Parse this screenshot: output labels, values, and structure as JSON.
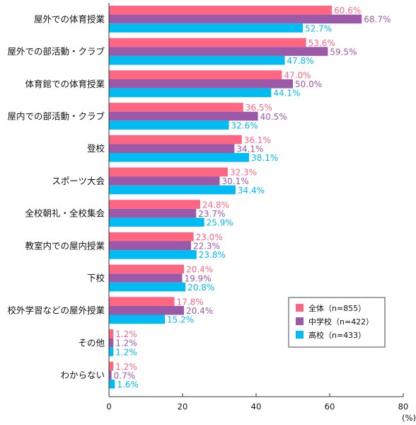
{
  "chart_data": {
    "type": "bar",
    "orientation": "horizontal",
    "categories": [
      "屋外での体育授業",
      "屋外での部活動・クラブ",
      "体育館での体育授業",
      "屋内での部活動・クラブ",
      "登校",
      "スポーツ大会",
      "全校朝礼・全校集会",
      "教室内での屋内授業",
      "下校",
      "校外学習などの屋外授業",
      "その他",
      "わからない"
    ],
    "series": [
      {
        "name": "全体（n=855）",
        "color": "#ff6682",
        "values": [
          60.6,
          53.6,
          47.0,
          36.5,
          36.1,
          32.3,
          24.8,
          23.0,
          20.4,
          17.8,
          1.2,
          1.2
        ],
        "labels": [
          "60.6%",
          "53.6%",
          "47.0%",
          "36.5%",
          "36.1%",
          "32.3%",
          "24.8%",
          "23.0%",
          "20.4%",
          "17.8%",
          "1.2%",
          "1.2%"
        ]
      },
      {
        "name": "中学校（n=422）",
        "color": "#9b59a8",
        "values": [
          68.7,
          59.5,
          50.0,
          40.5,
          34.1,
          30.1,
          23.7,
          22.3,
          19.9,
          20.4,
          1.2,
          0.7
        ],
        "labels": [
          "68.7%",
          "59.5%",
          "50.0%",
          "40.5%",
          "34.1%",
          "30.1%",
          "23.7%",
          "22.3%",
          "19.9%",
          "20.4%",
          "1.2%",
          "0.7%"
        ]
      },
      {
        "name": "高校（n=433）",
        "color": "#00bcf2",
        "values": [
          52.7,
          47.8,
          44.1,
          32.6,
          38.1,
          34.4,
          25.9,
          23.8,
          20.8,
          15.2,
          1.2,
          1.6
        ],
        "labels": [
          "52.7%",
          "47.8%",
          "44.1%",
          "32.6%",
          "38.1%",
          "34.4%",
          "25.9%",
          "23.8%",
          "20.8%",
          "15.2%",
          "1.2%",
          "1.6%"
        ]
      }
    ],
    "xlim": [
      0,
      80
    ],
    "xticks": [
      "0",
      "20",
      "40",
      "60",
      "80"
    ],
    "xunit": "(%)",
    "grid": false,
    "legend_position": "bottom-right"
  }
}
